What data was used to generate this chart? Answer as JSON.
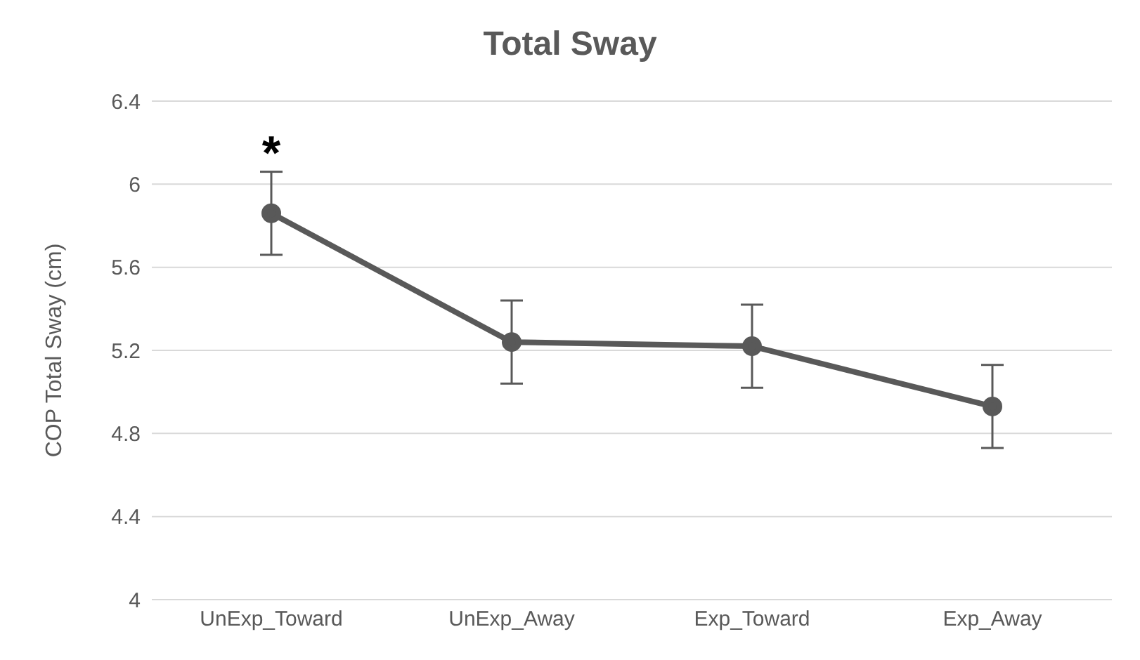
{
  "chart_data": {
    "type": "line",
    "title": "Total Sway",
    "ylabel": "COP Total Sway (cm)",
    "categories": [
      "UnExp_Toward",
      "UnExp_Away",
      "Exp_Toward",
      "Exp_Away"
    ],
    "series": [
      {
        "color": "#595959",
        "values": [
          5.86,
          5.24,
          5.22,
          4.93
        ],
        "errors": [
          0.2,
          0.2,
          0.2,
          0.2
        ]
      }
    ],
    "ylim": [
      4,
      6.4
    ],
    "yticks": [
      4,
      4.4,
      4.8,
      5.2,
      5.6,
      6,
      6.4
    ],
    "grid": "y",
    "marker": "circle",
    "line_style": "solid",
    "annotations": [
      "*"
    ]
  }
}
